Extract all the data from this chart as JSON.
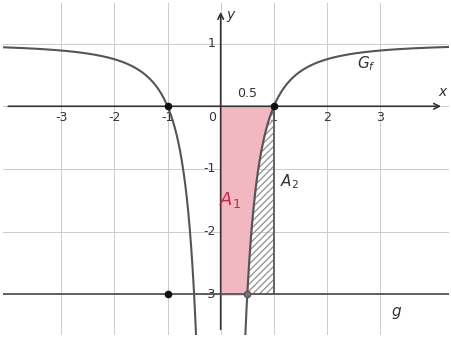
{
  "xlim": [
    -4.1,
    4.3
  ],
  "ylim": [
    -3.65,
    1.65
  ],
  "xticks": [
    -3,
    -2,
    -1,
    1,
    2,
    3
  ],
  "yticks": [
    -3,
    -2,
    -1,
    1
  ],
  "g_level": -3,
  "g_label": "g",
  "Gf_label": "G_f",
  "A1_label": "A_1",
  "A2_label": "A_2",
  "point_color": "#111111",
  "curve_color": "#555555",
  "g_color": "#555555",
  "fill_A1_color": "#f2b8c2",
  "hatch_color": "#999999",
  "axis_color": "#333333",
  "grid_color": "#cccccc",
  "background_color": "#ffffff",
  "figsize": [
    4.52,
    3.38
  ],
  "dpi": 100
}
